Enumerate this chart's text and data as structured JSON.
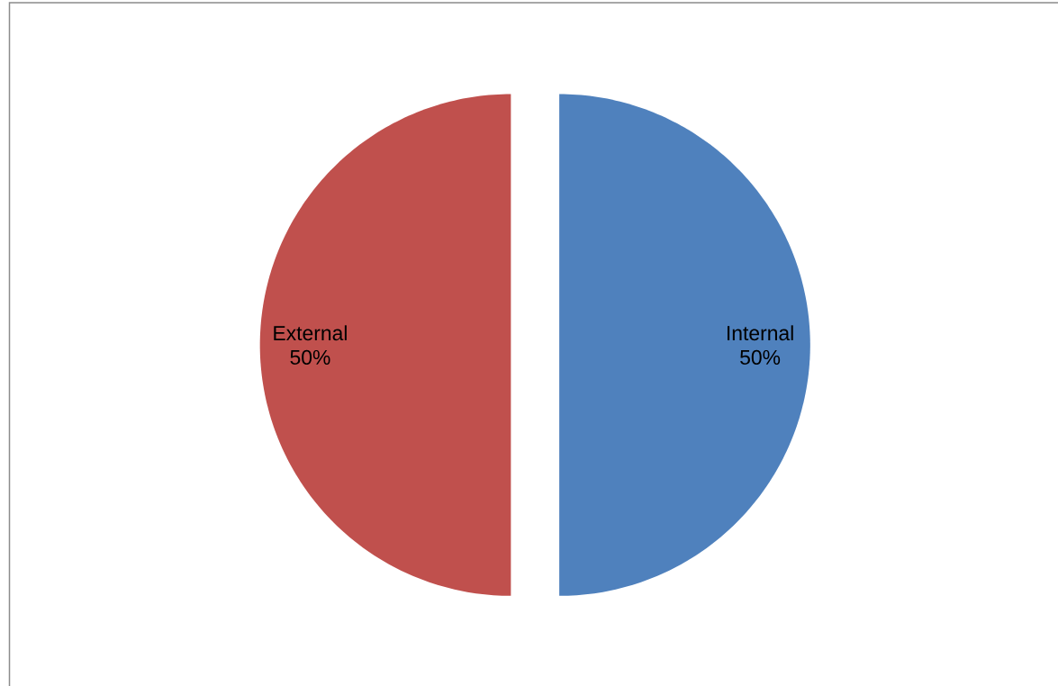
{
  "chart_data": {
    "type": "pie",
    "categories": [
      "Internal",
      "External"
    ],
    "values": [
      50,
      50
    ],
    "colors": [
      "#4f81bd",
      "#c0504d"
    ],
    "value_labels": [
      "50%",
      "50%"
    ]
  }
}
